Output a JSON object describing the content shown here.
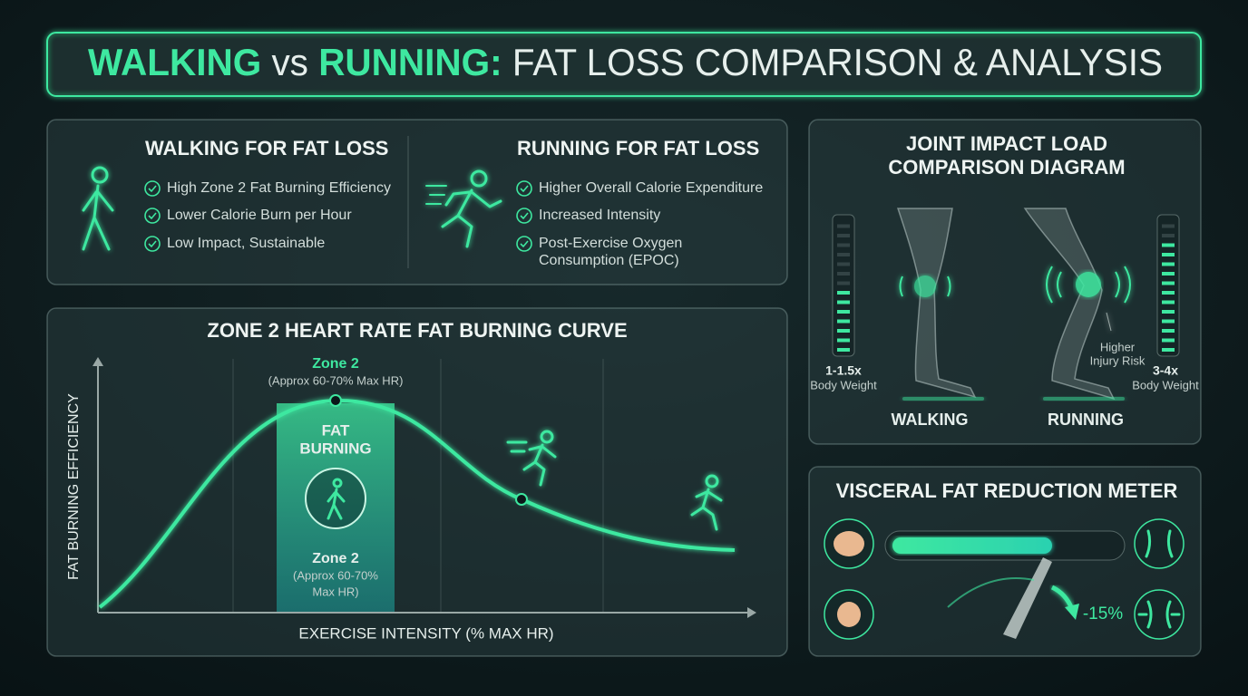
{
  "header": {
    "walking": "WALKING",
    "vs": "vs",
    "running": "RUNNING:",
    "rest": "FAT LOSS COMPARISON & ANALYSIS"
  },
  "walking": {
    "title": "WALKING FOR FAT LOSS",
    "points": [
      "High Zone 2 Fat Burning Efficiency",
      "Lower Calorie Burn per Hour",
      "Low Impact, Sustainable"
    ]
  },
  "running": {
    "title": "RUNNING FOR FAT LOSS",
    "points": [
      "Higher Overall Calorie Expenditure",
      "Increased Intensity",
      "Post-Exercise Oxygen Consumption (EPOC)"
    ]
  },
  "curve": {
    "title": "ZONE 2 HEART RATE FAT BURNING CURVE",
    "y_axis": "FAT BURNING EFFICIENCY",
    "x_axis": "EXERCISE INTENSITY (% MAX HR)",
    "zone_label": "Zone 2",
    "zone_note": "(Approx 60-70% Max HR)",
    "band_title": [
      "FAT",
      "BURNING"
    ],
    "band_zone": "Zone 2",
    "band_note": [
      "(Approx 60-70%",
      "Max HR)"
    ]
  },
  "joint": {
    "title": [
      "JOINT IMPACT LOAD",
      "COMPARISON DIAGRAM"
    ],
    "walking_load": "1-1.5x",
    "walking_unit": "Body Weight",
    "running_load": "3-4x",
    "running_unit": "Body Weight",
    "walking_label": "WALKING",
    "running_label": "RUNNING",
    "risk": [
      "Higher",
      "Injury Risk"
    ]
  },
  "meter": {
    "title": "VISCERAL FAT REDUCTION METER",
    "change": "-15%"
  }
}
